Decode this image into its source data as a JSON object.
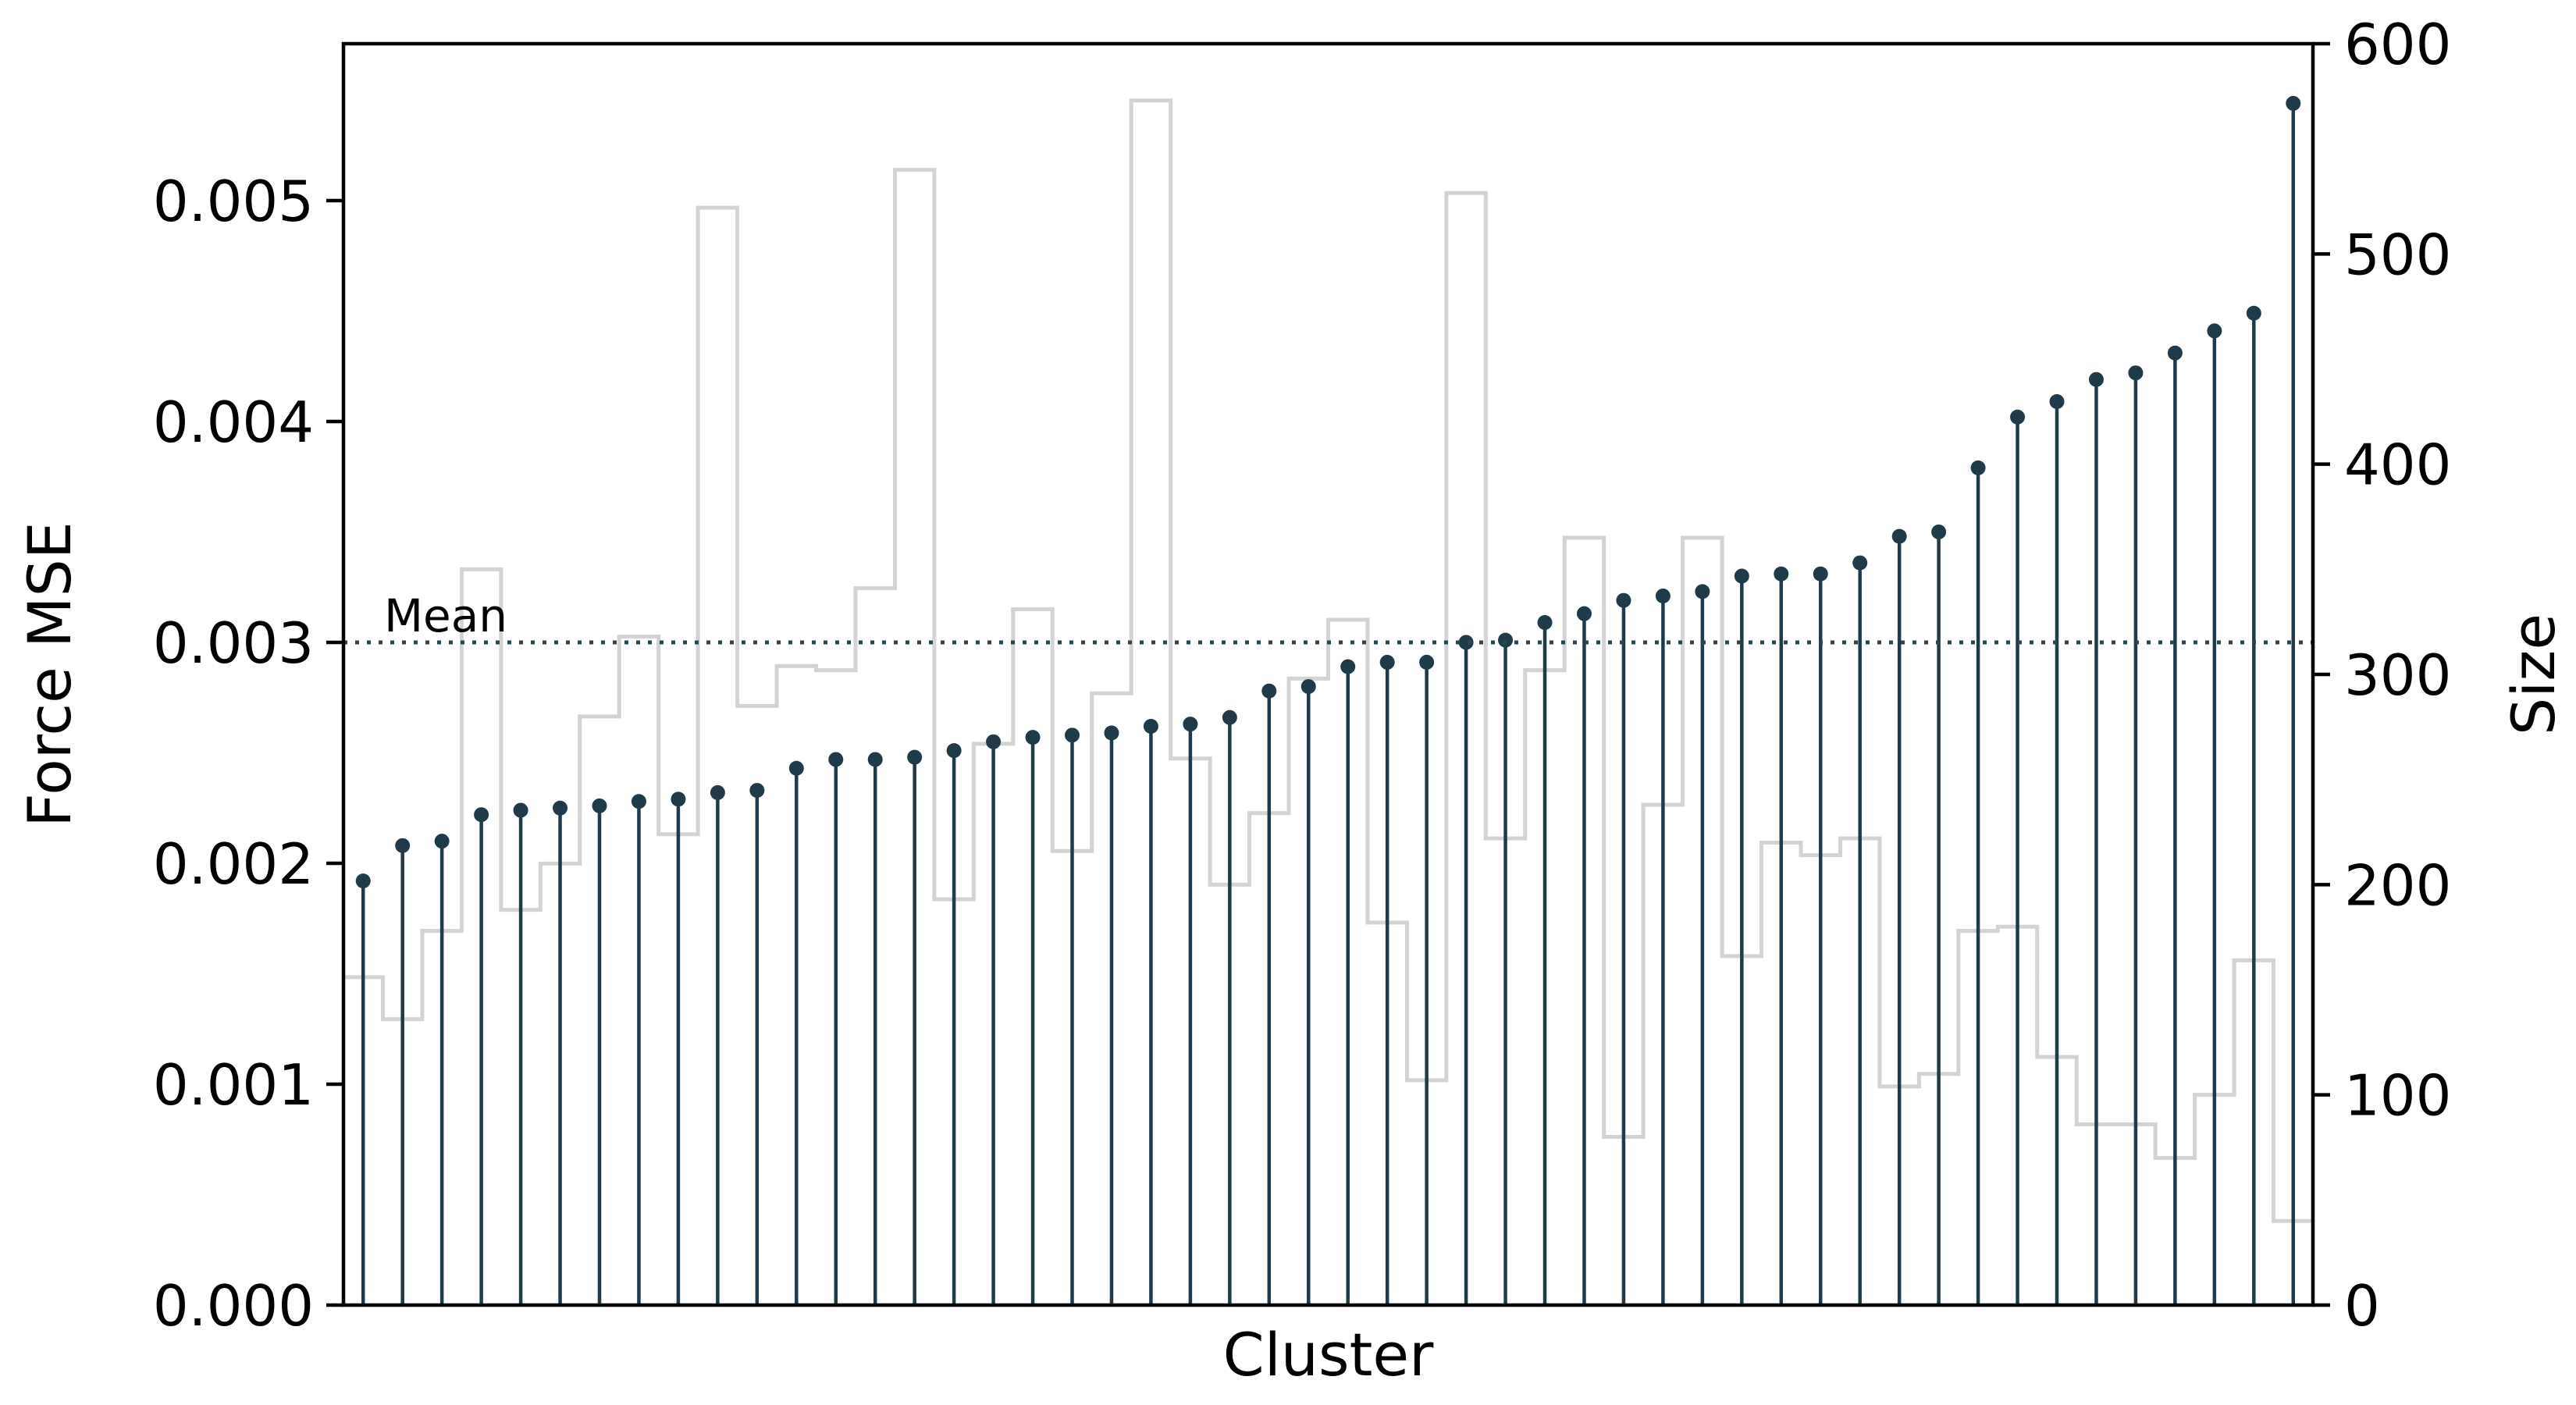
{
  "chart_data": {
    "type": "bar",
    "title": "",
    "xlabel": "Cluster",
    "ylabel": "Force MSE",
    "ylabel_right": "Size",
    "ylim": [
      0,
      0.00571
    ],
    "ylim_right": [
      0,
      600
    ],
    "yticks": [
      "0.000",
      "0.001",
      "0.002",
      "0.003",
      "0.004",
      "0.005"
    ],
    "yticks_right": [
      "0",
      "100",
      "200",
      "300",
      "400",
      "500",
      "600"
    ],
    "mean_label": "Mean",
    "mean_value": 0.003,
    "grid": false,
    "colors": {
      "stem": "#1f3b4a",
      "size_step": "#d3d3d3",
      "mean_line": "#2b4451"
    },
    "series": [
      {
        "type": "stem",
        "axis": "left",
        "values": [
          0.00192,
          0.00208,
          0.0021,
          0.00222,
          0.00224,
          0.00225,
          0.00226,
          0.00228,
          0.00229,
          0.00232,
          0.00233,
          0.00243,
          0.00247,
          0.00247,
          0.00248,
          0.00251,
          0.00255,
          0.00257,
          0.00258,
          0.00259,
          0.00262,
          0.00263,
          0.00266,
          0.00278,
          0.0028,
          0.00289,
          0.00291,
          0.00291,
          0.003,
          0.00301,
          0.00309,
          0.00313,
          0.00319,
          0.00321,
          0.00323,
          0.0033,
          0.00331,
          0.00331,
          0.00336,
          0.00348,
          0.0035,
          0.00379,
          0.00402,
          0.00409,
          0.00419,
          0.00422,
          0.00431,
          0.00441,
          0.00449,
          0.00544
        ]
      },
      {
        "type": "step",
        "axis": "right",
        "values": [
          156,
          136,
          178,
          350,
          188,
          210,
          280,
          318,
          224,
          522,
          285,
          304,
          302,
          341,
          540,
          193,
          267,
          331,
          216,
          291,
          573,
          260,
          200,
          234,
          298,
          326,
          182,
          107,
          529,
          222,
          302,
          365,
          80,
          238,
          365,
          166,
          220,
          214,
          222,
          104,
          110,
          178,
          180,
          118,
          86,
          86,
          70,
          100,
          164,
          40
        ]
      }
    ]
  }
}
